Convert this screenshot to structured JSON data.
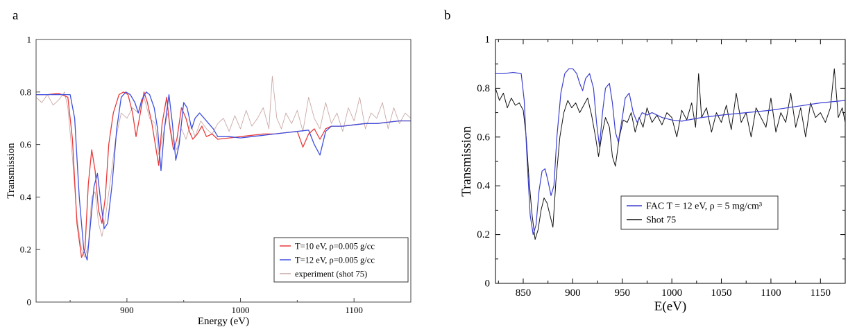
{
  "chart_data": [
    {
      "panel_label": "a",
      "type": "line",
      "xlabel": "Energy (eV)",
      "ylabel": "Transmission",
      "xlim": [
        820,
        1150
      ],
      "ylim": [
        0,
        1
      ],
      "x_ticks": [
        900,
        1000,
        1100
      ],
      "y_ticks": [
        0,
        0.2,
        0.4,
        0.6,
        0.8,
        1
      ],
      "x_tick_labels": [
        "900",
        "1000",
        "1100"
      ],
      "y_tick_labels": [
        "0",
        "0.2",
        "0.4",
        "0.6",
        "0.8",
        "1"
      ],
      "grid": false,
      "legend_position": "bottom-right",
      "series": [
        {
          "name": "experiment (shot 75)",
          "color": "#c9a9a6",
          "x": [
            820,
            825,
            830,
            835,
            840,
            845,
            848,
            852,
            856,
            860,
            863,
            866,
            869,
            872,
            875,
            878,
            881,
            885,
            890,
            895,
            900,
            905,
            910,
            915,
            920,
            925,
            928,
            932,
            936,
            940,
            944,
            948,
            952,
            956,
            960,
            965,
            970,
            975,
            980,
            985,
            990,
            995,
            1000,
            1005,
            1010,
            1015,
            1020,
            1025,
            1028,
            1032,
            1036,
            1040,
            1045,
            1050,
            1055,
            1060,
            1065,
            1070,
            1075,
            1080,
            1085,
            1090,
            1095,
            1100,
            1105,
            1110,
            1115,
            1120,
            1125,
            1130,
            1135,
            1140,
            1145,
            1150
          ],
          "values": [
            0.78,
            0.76,
            0.79,
            0.75,
            0.77,
            0.8,
            0.74,
            0.55,
            0.32,
            0.2,
            0.17,
            0.22,
            0.4,
            0.42,
            0.3,
            0.25,
            0.32,
            0.45,
            0.62,
            0.72,
            0.7,
            0.74,
            0.72,
            0.78,
            0.7,
            0.68,
            0.56,
            0.64,
            0.72,
            0.62,
            0.58,
            0.66,
            0.62,
            0.68,
            0.63,
            0.69,
            0.66,
            0.64,
            0.68,
            0.7,
            0.65,
            0.71,
            0.66,
            0.73,
            0.67,
            0.7,
            0.74,
            0.66,
            0.86,
            0.7,
            0.66,
            0.72,
            0.68,
            0.73,
            0.65,
            0.78,
            0.7,
            0.66,
            0.76,
            0.68,
            0.72,
            0.65,
            0.74,
            0.69,
            0.78,
            0.66,
            0.72,
            0.7,
            0.76,
            0.66,
            0.74,
            0.68,
            0.72,
            0.7
          ]
        },
        {
          "name": "T=10 eV, ρ=0.005 g/cc",
          "color": "#e83a3a",
          "x": [
            820,
            830,
            840,
            848,
            852,
            856,
            860,
            863,
            866,
            869,
            872,
            875,
            878,
            881,
            884,
            888,
            893,
            897,
            901,
            905,
            908,
            911,
            915,
            918,
            922,
            925,
            928,
            931,
            935,
            938,
            941,
            944,
            948,
            952,
            955,
            958,
            962,
            966,
            970,
            975,
            980,
            990,
            1000,
            1010,
            1020,
            1030,
            1040,
            1050,
            1055,
            1060,
            1065,
            1070,
            1075,
            1080,
            1090,
            1100,
            1110,
            1120,
            1130,
            1140,
            1150
          ],
          "values": [
            0.79,
            0.79,
            0.795,
            0.78,
            0.62,
            0.3,
            0.17,
            0.2,
            0.45,
            0.58,
            0.5,
            0.35,
            0.3,
            0.4,
            0.6,
            0.72,
            0.79,
            0.8,
            0.79,
            0.72,
            0.63,
            0.7,
            0.8,
            0.76,
            0.68,
            0.6,
            0.52,
            0.68,
            0.78,
            0.66,
            0.58,
            0.62,
            0.74,
            0.7,
            0.65,
            0.62,
            0.64,
            0.67,
            0.63,
            0.64,
            0.62,
            0.625,
            0.63,
            0.635,
            0.64,
            0.64,
            0.645,
            0.65,
            0.59,
            0.64,
            0.66,
            0.62,
            0.66,
            0.67,
            0.67,
            0.675,
            0.68,
            0.68,
            0.685,
            0.69,
            0.69
          ]
        },
        {
          "name": "T=12 eV, ρ=0.005 g/cc",
          "color": "#3d4fe0",
          "x": [
            820,
            830,
            840,
            850,
            854,
            858,
            862,
            865,
            868,
            871,
            874,
            877,
            880,
            883,
            887,
            891,
            895,
            899,
            903,
            907,
            910,
            913,
            917,
            920,
            924,
            927,
            930,
            933,
            937,
            940,
            943,
            946,
            950,
            953,
            957,
            960,
            964,
            968,
            972,
            976,
            980,
            990,
            1000,
            1010,
            1020,
            1030,
            1040,
            1050,
            1060,
            1065,
            1070,
            1075,
            1080,
            1090,
            1100,
            1110,
            1120,
            1130,
            1140,
            1150
          ],
          "values": [
            0.79,
            0.79,
            0.79,
            0.79,
            0.7,
            0.4,
            0.2,
            0.16,
            0.3,
            0.44,
            0.49,
            0.38,
            0.28,
            0.3,
            0.45,
            0.66,
            0.78,
            0.8,
            0.79,
            0.76,
            0.72,
            0.77,
            0.8,
            0.79,
            0.74,
            0.66,
            0.5,
            0.66,
            0.79,
            0.68,
            0.54,
            0.6,
            0.76,
            0.74,
            0.66,
            0.7,
            0.72,
            0.7,
            0.68,
            0.66,
            0.63,
            0.63,
            0.625,
            0.63,
            0.635,
            0.64,
            0.645,
            0.65,
            0.655,
            0.6,
            0.56,
            0.65,
            0.67,
            0.67,
            0.675,
            0.68,
            0.68,
            0.685,
            0.69,
            0.69
          ]
        }
      ]
    },
    {
      "panel_label": "b",
      "type": "line",
      "xlabel": "E(eV)",
      "ylabel": "Transmission",
      "xlim": [
        822,
        1175
      ],
      "ylim": [
        0,
        1
      ],
      "x_ticks": [
        850,
        900,
        950,
        1000,
        1050,
        1100,
        1150
      ],
      "y_ticks": [
        0,
        0.2,
        0.4,
        0.6,
        0.8,
        1
      ],
      "x_tick_labels": [
        "850",
        "900",
        "950",
        "1000",
        "1050",
        "1100",
        "1150"
      ],
      "y_tick_labels": [
        "0",
        "0.2",
        "0.4",
        "0.6",
        "0.8",
        "1"
      ],
      "grid": false,
      "legend_position": "center-right",
      "series": [
        {
          "name": "Shot 75",
          "color": "#111111",
          "x": [
            822,
            826,
            830,
            834,
            838,
            842,
            846,
            850,
            853,
            856,
            859,
            862,
            865,
            868,
            871,
            874,
            877,
            880,
            883,
            887,
            891,
            895,
            899,
            903,
            907,
            911,
            915,
            919,
            923,
            926,
            929,
            933,
            937,
            940,
            943,
            947,
            951,
            955,
            959,
            963,
            967,
            971,
            975,
            980,
            985,
            990,
            995,
            1000,
            1005,
            1010,
            1015,
            1020,
            1024,
            1027,
            1030,
            1035,
            1040,
            1045,
            1050,
            1055,
            1060,
            1065,
            1070,
            1075,
            1080,
            1085,
            1090,
            1095,
            1100,
            1105,
            1110,
            1115,
            1120,
            1125,
            1130,
            1135,
            1140,
            1145,
            1150,
            1155,
            1160,
            1164,
            1168,
            1172,
            1175
          ],
          "values": [
            0.8,
            0.75,
            0.78,
            0.72,
            0.76,
            0.73,
            0.74,
            0.71,
            0.6,
            0.42,
            0.28,
            0.18,
            0.22,
            0.3,
            0.35,
            0.33,
            0.28,
            0.23,
            0.42,
            0.6,
            0.7,
            0.75,
            0.72,
            0.74,
            0.7,
            0.73,
            0.76,
            0.69,
            0.6,
            0.52,
            0.6,
            0.68,
            0.64,
            0.52,
            0.48,
            0.6,
            0.67,
            0.66,
            0.7,
            0.62,
            0.68,
            0.64,
            0.72,
            0.66,
            0.69,
            0.65,
            0.7,
            0.68,
            0.6,
            0.71,
            0.67,
            0.74,
            0.64,
            0.86,
            0.68,
            0.72,
            0.62,
            0.7,
            0.66,
            0.73,
            0.63,
            0.78,
            0.66,
            0.7,
            0.6,
            0.72,
            0.68,
            0.64,
            0.76,
            0.62,
            0.7,
            0.66,
            0.78,
            0.64,
            0.72,
            0.6,
            0.74,
            0.68,
            0.7,
            0.66,
            0.72,
            0.88,
            0.68,
            0.72,
            0.66
          ]
        },
        {
          "name": "FAC  T = 12 eV, ρ = 5 mg/cm³",
          "color": "#3b3fd0",
          "x": [
            822,
            830,
            840,
            848,
            851,
            854,
            857,
            860,
            863,
            866,
            869,
            872,
            875,
            878,
            881,
            884,
            888,
            892,
            896,
            900,
            904,
            907,
            910,
            913,
            917,
            921,
            924,
            927,
            930,
            933,
            937,
            940,
            943,
            946,
            950,
            953,
            957,
            961,
            965,
            970,
            975,
            980,
            990,
            1000,
            1010,
            1030,
            1050,
            1075,
            1100,
            1125,
            1150,
            1175
          ],
          "values": [
            0.86,
            0.86,
            0.865,
            0.86,
            0.75,
            0.5,
            0.28,
            0.2,
            0.24,
            0.38,
            0.46,
            0.47,
            0.42,
            0.36,
            0.4,
            0.6,
            0.78,
            0.86,
            0.88,
            0.88,
            0.86,
            0.82,
            0.79,
            0.84,
            0.86,
            0.8,
            0.66,
            0.56,
            0.7,
            0.8,
            0.82,
            0.74,
            0.62,
            0.58,
            0.68,
            0.76,
            0.78,
            0.7,
            0.66,
            0.7,
            0.69,
            0.7,
            0.68,
            0.67,
            0.665,
            0.68,
            0.69,
            0.7,
            0.71,
            0.725,
            0.74,
            0.75
          ]
        }
      ]
    }
  ]
}
